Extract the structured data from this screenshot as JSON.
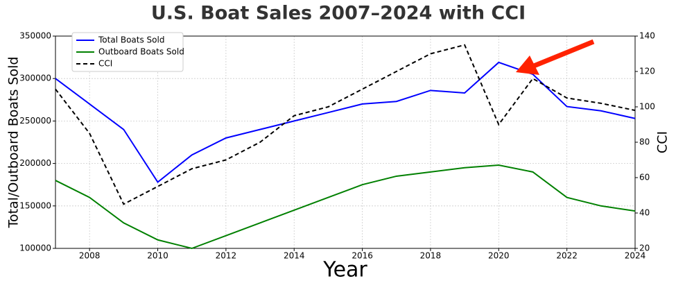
{
  "chart_data": {
    "type": "line",
    "title": "U.S. Boat Sales 2007–2024 with CCI",
    "x_label": "Year",
    "y_label": "Total/Outboard Boats Sold",
    "y2_label": "CCI",
    "x": [
      2007,
      2008,
      2009,
      2010,
      2011,
      2012,
      2013,
      2014,
      2015,
      2016,
      2017,
      2018,
      2019,
      2020,
      2021,
      2022,
      2023,
      2024
    ],
    "series": [
      {
        "name": "Total Boats Sold",
        "color": "#0000ff",
        "dash": false,
        "values": [
          300000,
          270000,
          240000,
          178000,
          210000,
          230000,
          240000,
          250000,
          260000,
          270000,
          273000,
          286000,
          283000,
          319000,
          305000,
          267000,
          262000,
          253000
        ]
      },
      {
        "name": "Outboard Boats Sold",
        "color": "#008000",
        "dash": false,
        "values": [
          180000,
          160000,
          130000,
          110000,
          100000,
          115000,
          130000,
          145000,
          160000,
          175000,
          185000,
          190000,
          195000,
          198000,
          190000,
          160000,
          150000,
          144000
        ]
      },
      {
        "name": "CCI",
        "color": "#000000",
        "dash": true,
        "axis": "y2",
        "values": [
          110,
          85,
          45,
          55,
          65,
          70,
          80,
          95,
          100,
          110,
          120,
          130,
          135,
          90,
          116,
          105,
          102,
          98
        ]
      }
    ],
    "xlim": [
      2007,
      2024
    ],
    "xticks": [
      2008,
      2010,
      2012,
      2014,
      2016,
      2018,
      2020,
      2022,
      2024
    ],
    "ylim": [
      100000,
      350000
    ],
    "yticks": [
      100000,
      150000,
      200000,
      250000,
      300000,
      350000
    ],
    "y2lim": [
      20,
      140
    ],
    "y2ticks": [
      20,
      40,
      60,
      80,
      100,
      120,
      140
    ],
    "grid": true,
    "legend": "upper left"
  }
}
